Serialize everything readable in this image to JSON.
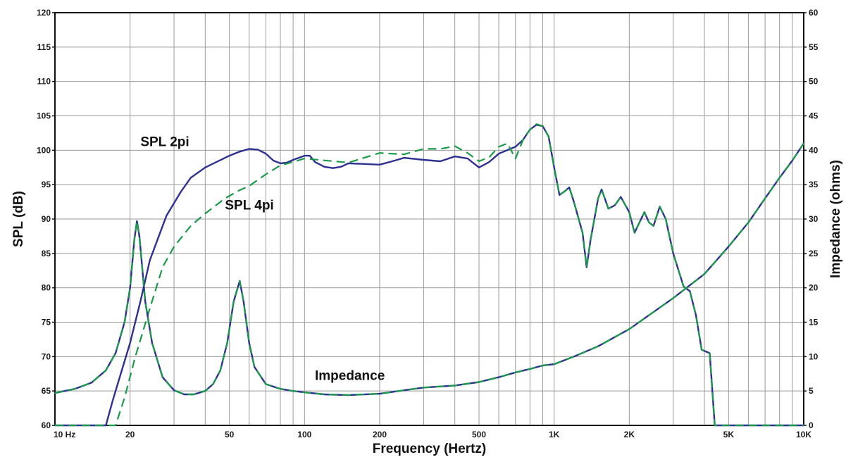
{
  "chart_data": {
    "type": "line",
    "xlabel": "Frequency (Hertz)",
    "ylabel": "SPL (dB)",
    "y2label": "Impedance (ohms)",
    "xscale": "log",
    "xlim": [
      10,
      10000
    ],
    "ylim": [
      60,
      120
    ],
    "y2lim": [
      0,
      60
    ],
    "grid": true,
    "x_ticks": [
      {
        "value": 10,
        "label": "10  Hz"
      },
      {
        "value": 20,
        "label": "20"
      },
      {
        "value": 50,
        "label": "50"
      },
      {
        "value": 100,
        "label": "100"
      },
      {
        "value": 200,
        "label": "200"
      },
      {
        "value": 500,
        "label": "500"
      },
      {
        "value": 1000,
        "label": "1K"
      },
      {
        "value": 2000,
        "label": "2K"
      },
      {
        "value": 5000,
        "label": "5K"
      },
      {
        "value": 10000,
        "label": "10K"
      }
    ],
    "y_ticks": [
      60,
      65,
      70,
      75,
      80,
      85,
      90,
      95,
      100,
      105,
      110,
      115,
      120
    ],
    "y2_ticks": [
      0,
      5,
      10,
      15,
      20,
      25,
      30,
      35,
      40,
      45,
      50,
      55,
      60
    ],
    "annotations": [
      {
        "text": "SPL 2pi",
        "x": 22,
        "y": 100.6
      },
      {
        "text": "SPL 4pi",
        "x": 48,
        "y": 91.4
      },
      {
        "text": "Impedance",
        "x": 110,
        "y": 66.6
      }
    ],
    "series": [
      {
        "axis": "left",
        "color": "#2e3192",
        "dash": false,
        "points": [
          [
            10,
            60
          ],
          [
            16,
            60
          ],
          [
            17,
            63.5
          ],
          [
            18,
            66.5
          ],
          [
            20,
            72
          ],
          [
            22,
            78
          ],
          [
            24,
            84
          ],
          [
            28,
            90.5
          ],
          [
            32,
            94
          ],
          [
            35,
            96
          ],
          [
            40,
            97.5
          ],
          [
            50,
            99.2
          ],
          [
            55,
            99.8
          ],
          [
            60,
            100.2
          ],
          [
            65,
            100.1
          ],
          [
            70,
            99.5
          ],
          [
            75,
            98.5
          ],
          [
            80,
            98.1
          ],
          [
            85,
            98.2
          ],
          [
            90,
            98.6
          ],
          [
            100,
            99.2
          ],
          [
            105,
            99.2
          ],
          [
            110,
            98.3
          ],
          [
            120,
            97.6
          ],
          [
            130,
            97.4
          ],
          [
            140,
            97.6
          ],
          [
            150,
            98.1
          ],
          [
            200,
            97.9
          ],
          [
            230,
            98.5
          ],
          [
            250,
            98.9
          ],
          [
            300,
            98.6
          ],
          [
            350,
            98.4
          ],
          [
            400,
            99.1
          ],
          [
            450,
            98.8
          ],
          [
            500,
            97.5
          ],
          [
            550,
            98.3
          ],
          [
            600,
            99.5
          ],
          [
            700,
            100.5
          ],
          [
            750,
            101.5
          ],
          [
            800,
            103
          ],
          [
            850,
            103.7
          ],
          [
            900,
            103.5
          ],
          [
            950,
            102
          ],
          [
            1000,
            97.5
          ],
          [
            1050,
            93.5
          ],
          [
            1100,
            94
          ],
          [
            1150,
            94.6
          ],
          [
            1200,
            92.5
          ],
          [
            1300,
            88
          ],
          [
            1350,
            83
          ],
          [
            1400,
            87
          ],
          [
            1500,
            93
          ],
          [
            1550,
            94.3
          ],
          [
            1650,
            91.5
          ],
          [
            1750,
            92
          ],
          [
            1850,
            93.2
          ],
          [
            2000,
            91
          ],
          [
            2100,
            88
          ],
          [
            2300,
            91
          ],
          [
            2400,
            89.5
          ],
          [
            2500,
            89
          ],
          [
            2650,
            91.8
          ],
          [
            2800,
            90
          ],
          [
            3000,
            85
          ],
          [
            3300,
            80.2
          ],
          [
            3500,
            79.5
          ],
          [
            3700,
            76
          ],
          [
            3900,
            71
          ],
          [
            4200,
            70.5
          ],
          [
            4400,
            60
          ],
          [
            10000,
            60
          ]
        ]
      },
      {
        "axis": "left",
        "color": "#1a9a4a",
        "dash": true,
        "points": [
          [
            10,
            60
          ],
          [
            17.5,
            60
          ],
          [
            19,
            64
          ],
          [
            21,
            70
          ],
          [
            24,
            77
          ],
          [
            27,
            83
          ],
          [
            30,
            86
          ],
          [
            35,
            89
          ],
          [
            40,
            90.8
          ],
          [
            48,
            93
          ],
          [
            55,
            94.2
          ],
          [
            60,
            94.8
          ],
          [
            70,
            96.5
          ],
          [
            80,
            97.8
          ],
          [
            90,
            98.3
          ],
          [
            100,
            98.8
          ],
          [
            150,
            98.2
          ],
          [
            200,
            99.6
          ],
          [
            250,
            99.4
          ],
          [
            300,
            100.2
          ],
          [
            350,
            100.2
          ],
          [
            400,
            100.6
          ],
          [
            450,
            99.6
          ],
          [
            500,
            98.4
          ],
          [
            550,
            99
          ],
          [
            600,
            100.5
          ],
          [
            650,
            101
          ],
          [
            700,
            98.8
          ],
          [
            750,
            101.5
          ],
          [
            800,
            103
          ],
          [
            850,
            103.8
          ],
          [
            900,
            103.5
          ],
          [
            950,
            102
          ],
          [
            1000,
            97.5
          ],
          [
            1050,
            93.5
          ],
          [
            1100,
            94
          ],
          [
            1150,
            94.6
          ],
          [
            1200,
            92.5
          ],
          [
            1300,
            88
          ],
          [
            1350,
            83
          ],
          [
            1400,
            87
          ],
          [
            1500,
            93
          ],
          [
            1550,
            94.3
          ],
          [
            1650,
            91.5
          ],
          [
            1750,
            92
          ],
          [
            1850,
            93.2
          ],
          [
            2000,
            91
          ],
          [
            2100,
            88
          ],
          [
            2300,
            91
          ],
          [
            2400,
            89.5
          ],
          [
            2500,
            89
          ],
          [
            2650,
            91.8
          ],
          [
            2800,
            90
          ],
          [
            3000,
            85
          ],
          [
            3300,
            80.2
          ],
          [
            3500,
            79.5
          ],
          [
            3700,
            76
          ],
          [
            3900,
            71
          ],
          [
            4200,
            70.5
          ],
          [
            4400,
            60
          ],
          [
            10000,
            60
          ]
        ]
      },
      {
        "axis": "right",
        "color": "#2e3192",
        "dash": false,
        "points": [
          [
            10,
            4.7
          ],
          [
            12,
            5.3
          ],
          [
            14,
            6.2
          ],
          [
            16,
            8
          ],
          [
            17.5,
            10.5
          ],
          [
            19,
            15
          ],
          [
            20,
            20
          ],
          [
            20.8,
            27
          ],
          [
            21.3,
            29.7
          ],
          [
            21.8,
            27.5
          ],
          [
            23,
            18
          ],
          [
            24.5,
            12
          ],
          [
            27,
            7
          ],
          [
            30,
            5.1
          ],
          [
            33,
            4.5
          ],
          [
            36,
            4.5
          ],
          [
            40,
            5
          ],
          [
            43,
            6
          ],
          [
            46,
            8
          ],
          [
            49,
            12
          ],
          [
            52,
            18
          ],
          [
            55,
            21
          ],
          [
            57,
            18
          ],
          [
            60,
            12
          ],
          [
            63,
            8.5
          ],
          [
            70,
            6
          ],
          [
            80,
            5.3
          ],
          [
            90,
            5
          ],
          [
            100,
            4.8
          ],
          [
            120,
            4.5
          ],
          [
            150,
            4.4
          ],
          [
            200,
            4.6
          ],
          [
            250,
            5.1
          ],
          [
            300,
            5.5
          ],
          [
            400,
            5.8
          ],
          [
            500,
            6.3
          ],
          [
            600,
            7
          ],
          [
            700,
            7.7
          ],
          [
            800,
            8.2
          ],
          [
            900,
            8.7
          ],
          [
            1000,
            8.9
          ],
          [
            1200,
            10
          ],
          [
            1500,
            11.5
          ],
          [
            2000,
            14
          ],
          [
            3000,
            18.5
          ],
          [
            4000,
            22
          ],
          [
            5000,
            26
          ],
          [
            6000,
            29.5
          ],
          [
            7000,
            33
          ],
          [
            8000,
            36
          ],
          [
            9000,
            38.5
          ],
          [
            10000,
            41
          ]
        ]
      },
      {
        "axis": "right",
        "color": "#1a9a4a",
        "dash": true,
        "points": [
          [
            10,
            4.7
          ],
          [
            12,
            5.3
          ],
          [
            14,
            6.2
          ],
          [
            16,
            8
          ],
          [
            17.5,
            10.5
          ],
          [
            19,
            15
          ],
          [
            20,
            20
          ],
          [
            20.8,
            27
          ],
          [
            21.3,
            29.7
          ],
          [
            21.8,
            27.5
          ],
          [
            23,
            18
          ],
          [
            24.5,
            12
          ],
          [
            27,
            7
          ],
          [
            30,
            5.1
          ],
          [
            33,
            4.5
          ],
          [
            36,
            4.5
          ],
          [
            40,
            5
          ],
          [
            43,
            6
          ],
          [
            46,
            8
          ],
          [
            49,
            12
          ],
          [
            52,
            18
          ],
          [
            55,
            21
          ],
          [
            57,
            18
          ],
          [
            60,
            12
          ],
          [
            63,
            8.5
          ],
          [
            70,
            6
          ],
          [
            80,
            5.3
          ],
          [
            90,
            5
          ],
          [
            100,
            4.8
          ],
          [
            120,
            4.5
          ],
          [
            150,
            4.4
          ],
          [
            200,
            4.6
          ],
          [
            250,
            5.1
          ],
          [
            300,
            5.5
          ],
          [
            400,
            5.8
          ],
          [
            500,
            6.3
          ],
          [
            600,
            7
          ],
          [
            700,
            7.7
          ],
          [
            800,
            8.2
          ],
          [
            900,
            8.7
          ],
          [
            1000,
            8.9
          ],
          [
            1200,
            10
          ],
          [
            1500,
            11.5
          ],
          [
            2000,
            14
          ],
          [
            3000,
            18.5
          ],
          [
            4000,
            22
          ],
          [
            5000,
            26
          ],
          [
            6000,
            29.5
          ],
          [
            7000,
            33
          ],
          [
            8000,
            36
          ],
          [
            9000,
            38.5
          ],
          [
            10000,
            41
          ]
        ]
      }
    ]
  }
}
